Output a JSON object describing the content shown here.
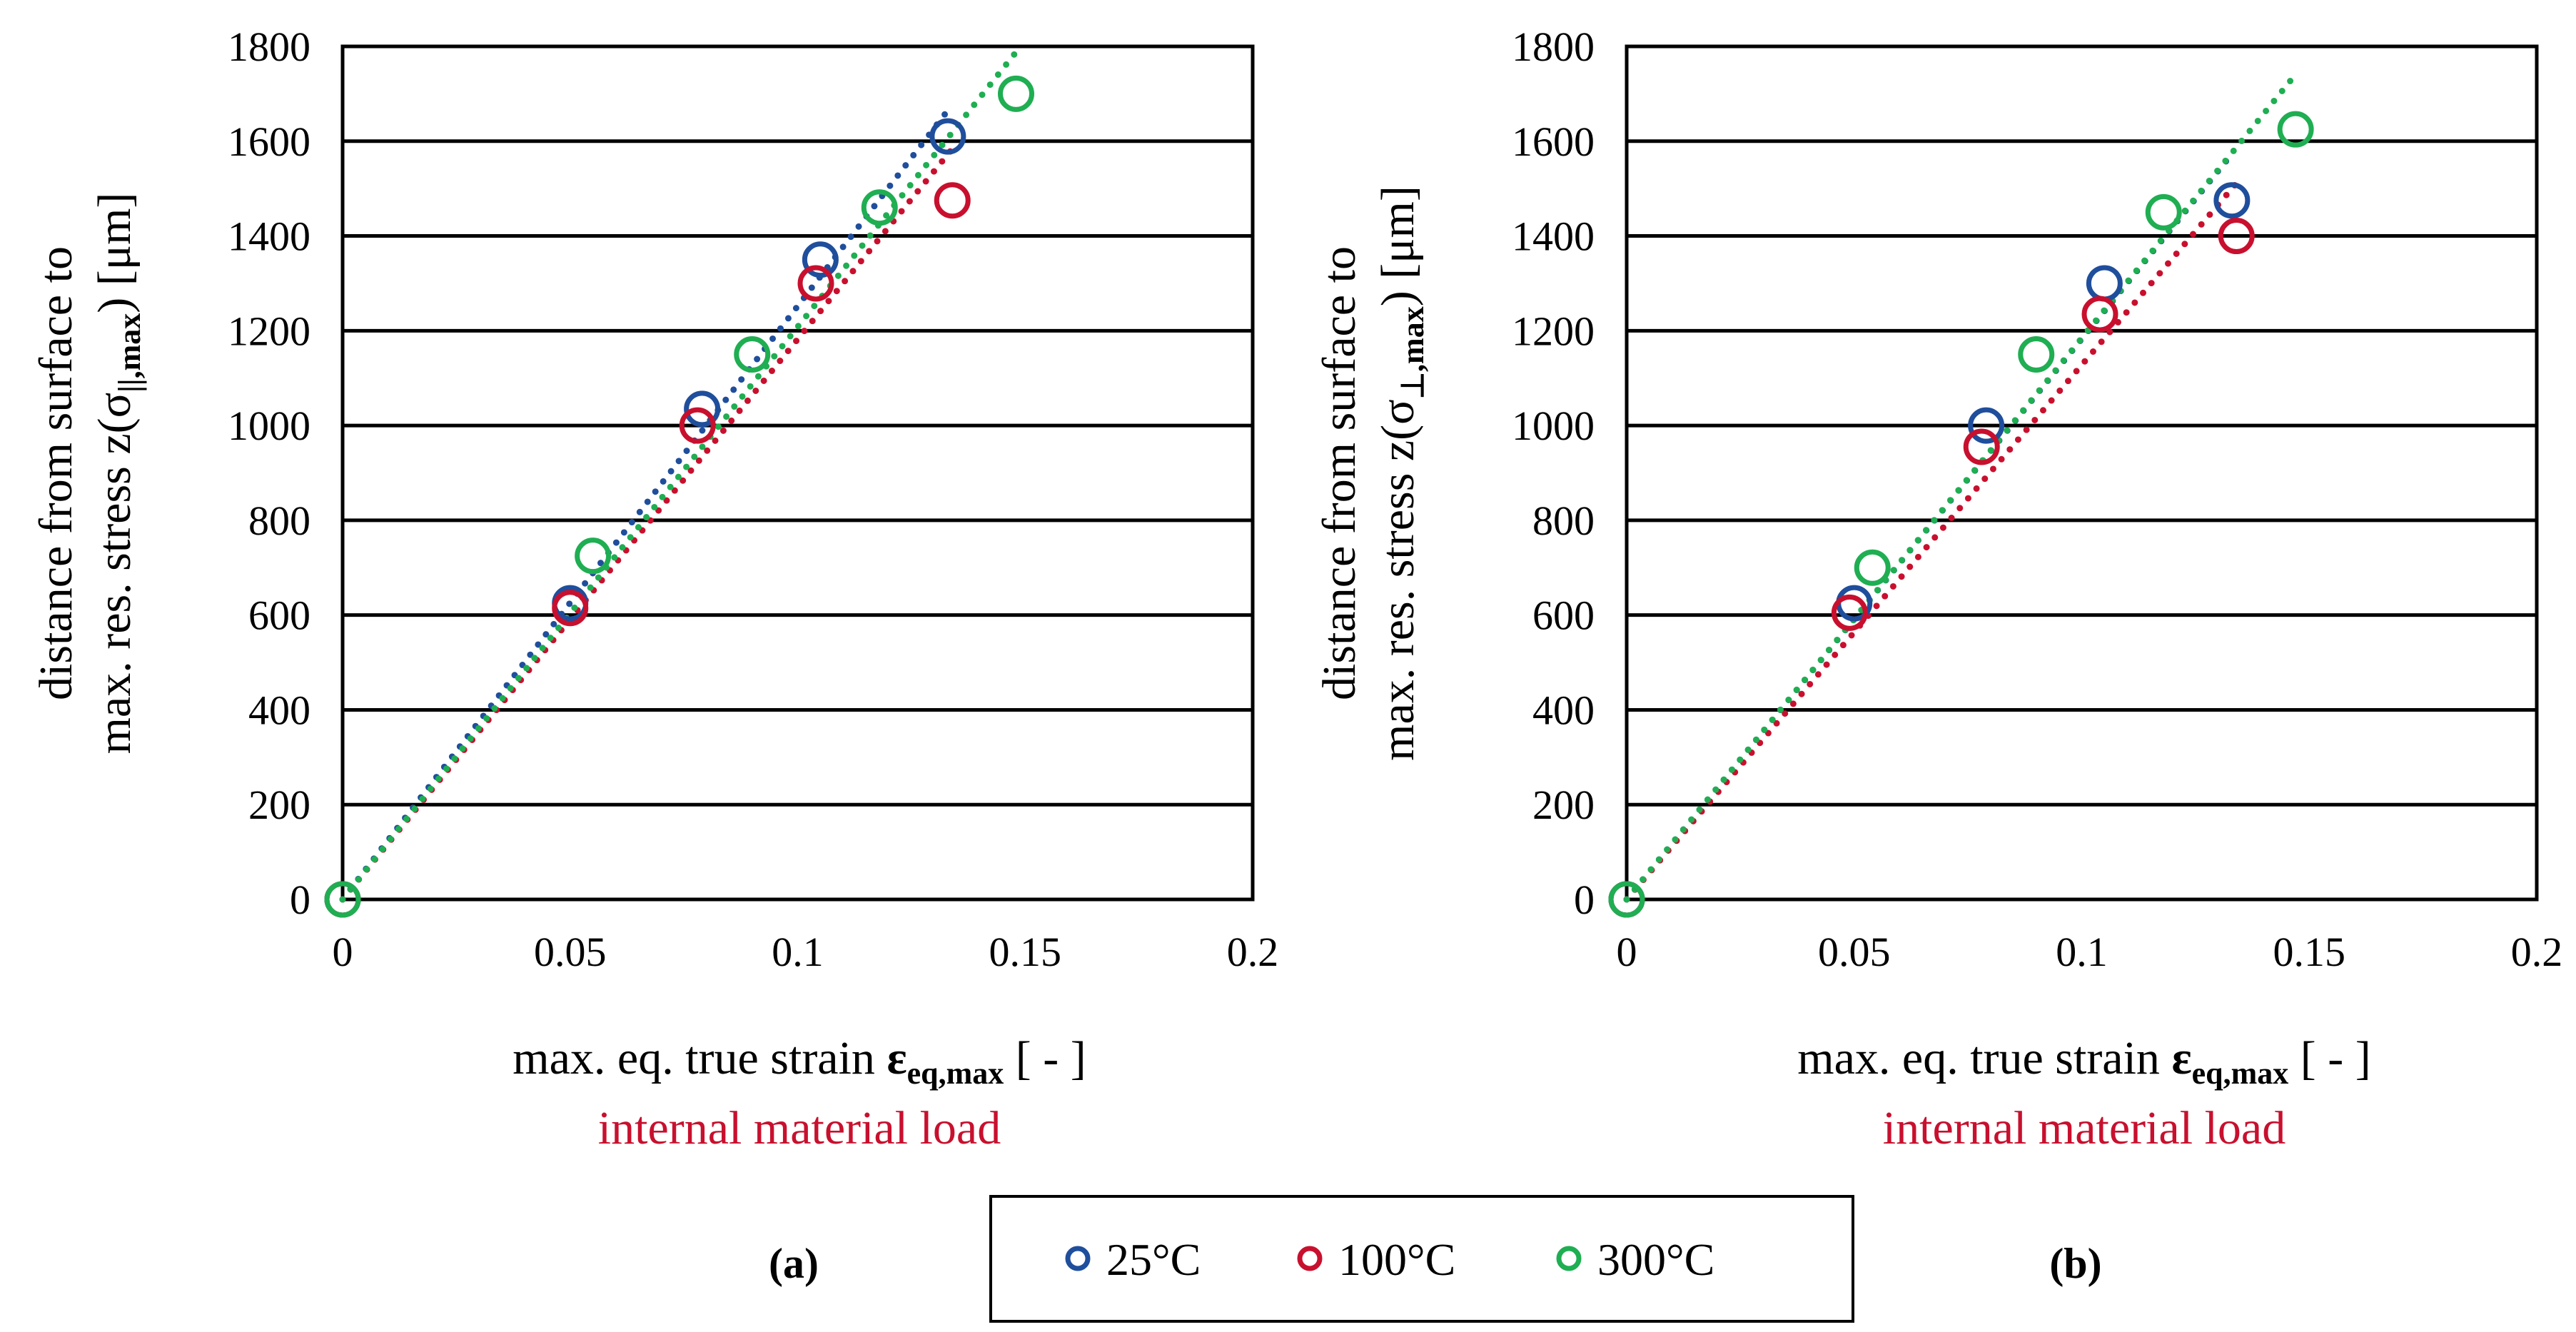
{
  "chart_data": [
    {
      "type": "scatter",
      "panel_label": "(a)",
      "ylabel_line1": "distance from surface to",
      "ylabel_line2_prefix": "max. res. stress z(σ",
      "ylabel_sub": "||,max",
      "ylabel_suffix": ") [μm]",
      "xlabel_prefix": "max. eq. true strain ",
      "xlabel_symbol": "ε",
      "xlabel_sub": "eq,max",
      "xlabel_suffix": " [ - ]",
      "annotation": "internal material load",
      "xlim": [
        0,
        0.2
      ],
      "ylim": [
        0,
        1800
      ],
      "xticks": [
        "0",
        "0.05",
        "0.1",
        "0.15",
        "0.2"
      ],
      "yticks": [
        "0",
        "200",
        "400",
        "600",
        "800",
        "1000",
        "1200",
        "1400",
        "1600",
        "1800"
      ],
      "series": [
        {
          "name": "25°C",
          "color": "#1f4e9c",
          "x": [
            0,
            0.05,
            0.079,
            0.105,
            0.133
          ],
          "y": [
            0,
            625,
            1035,
            1350,
            1610
          ]
        },
        {
          "name": "100°C",
          "color": "#c8102e",
          "x": [
            0,
            0.05,
            0.078,
            0.104,
            0.134
          ],
          "y": [
            0,
            615,
            1000,
            1300,
            1475
          ]
        },
        {
          "name": "300°C",
          "color": "#1fae52",
          "x": [
            0,
            0.055,
            0.09,
            0.118,
            0.148
          ],
          "y": [
            0,
            725,
            1150,
            1460,
            1700
          ]
        }
      ]
    },
    {
      "type": "scatter",
      "panel_label": "(b)",
      "ylabel_line1": "distance from surface to",
      "ylabel_line2_prefix": "max. res. stress z(σ",
      "ylabel_sub": "⊥,max",
      "ylabel_suffix": ") [μm]",
      "xlabel_prefix": "max. eq. true strain ",
      "xlabel_symbol": "ε",
      "xlabel_sub": "eq,max",
      "xlabel_suffix": " [ - ]",
      "annotation": "internal material load",
      "xlim": [
        0,
        0.2
      ],
      "ylim": [
        0,
        1800
      ],
      "xticks": [
        "0",
        "0.05",
        "0.1",
        "0.15",
        "0.2"
      ],
      "yticks": [
        "0",
        "200",
        "400",
        "600",
        "800",
        "1000",
        "1200",
        "1400",
        "1600",
        "1800"
      ],
      "series": [
        {
          "name": "25°C",
          "color": "#1f4e9c",
          "x": [
            0,
            0.05,
            0.079,
            0.105,
            0.133
          ],
          "y": [
            0,
            625,
            1000,
            1300,
            1475
          ]
        },
        {
          "name": "100°C",
          "color": "#c8102e",
          "x": [
            0,
            0.049,
            0.078,
            0.104,
            0.134
          ],
          "y": [
            0,
            605,
            955,
            1235,
            1400
          ]
        },
        {
          "name": "300°C",
          "color": "#1fae52",
          "x": [
            0,
            0.054,
            0.09,
            0.118,
            0.147
          ],
          "y": [
            0,
            700,
            1150,
            1450,
            1625
          ]
        }
      ]
    }
  ],
  "legend": {
    "items": [
      {
        "label": "25°C",
        "color": "#1f4e9c"
      },
      {
        "label": "100°C",
        "color": "#c8102e"
      },
      {
        "label": "300°C",
        "color": "#1fae52"
      }
    ]
  }
}
